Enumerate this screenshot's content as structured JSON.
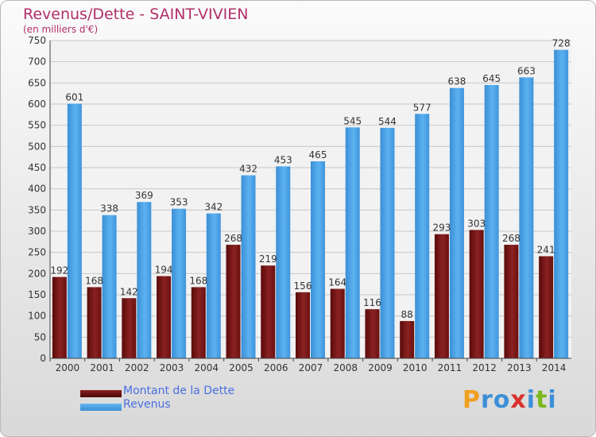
{
  "title": "Revenus/Dette - SAINT-VIVIEN",
  "subtitle": "(en milliers d'€)",
  "colors": {
    "debt": "#7a1414",
    "revenue": "#4aa3e6",
    "title": "#b0306a",
    "legend_text": "#4a6fe0"
  },
  "logo": {
    "letters": [
      "P",
      "r",
      "o",
      "x",
      "i",
      "t",
      "i"
    ],
    "colors": [
      "#f0a020",
      "#3c8fd8",
      "#3c8fd8",
      "#d8302c",
      "#3c8fd8",
      "#7ab81e",
      "#3c8fd8"
    ]
  },
  "chart_data": {
    "type": "bar",
    "title": "Revenus/Dette - SAINT-VIVIEN",
    "subtitle": "(en milliers d'€)",
    "categories": [
      "2000",
      "2001",
      "2002",
      "2003",
      "2004",
      "2005",
      "2006",
      "2007",
      "2008",
      "2009",
      "2010",
      "2011",
      "2012",
      "2013",
      "2014"
    ],
    "series": [
      {
        "name": "Montant de la Dette",
        "values": [
          192,
          168,
          142,
          194,
          168,
          268,
          219,
          156,
          164,
          116,
          88,
          293,
          303,
          268,
          241
        ]
      },
      {
        "name": "Revenus",
        "values": [
          601,
          338,
          369,
          353,
          342,
          432,
          453,
          465,
          545,
          544,
          577,
          638,
          645,
          663,
          728
        ]
      }
    ],
    "ylim": [
      0,
      750
    ],
    "yticks": [
      0,
      50,
      100,
      150,
      200,
      250,
      300,
      350,
      400,
      450,
      500,
      550,
      600,
      650,
      700,
      750
    ],
    "grid": true,
    "legend": "bottom-left"
  }
}
